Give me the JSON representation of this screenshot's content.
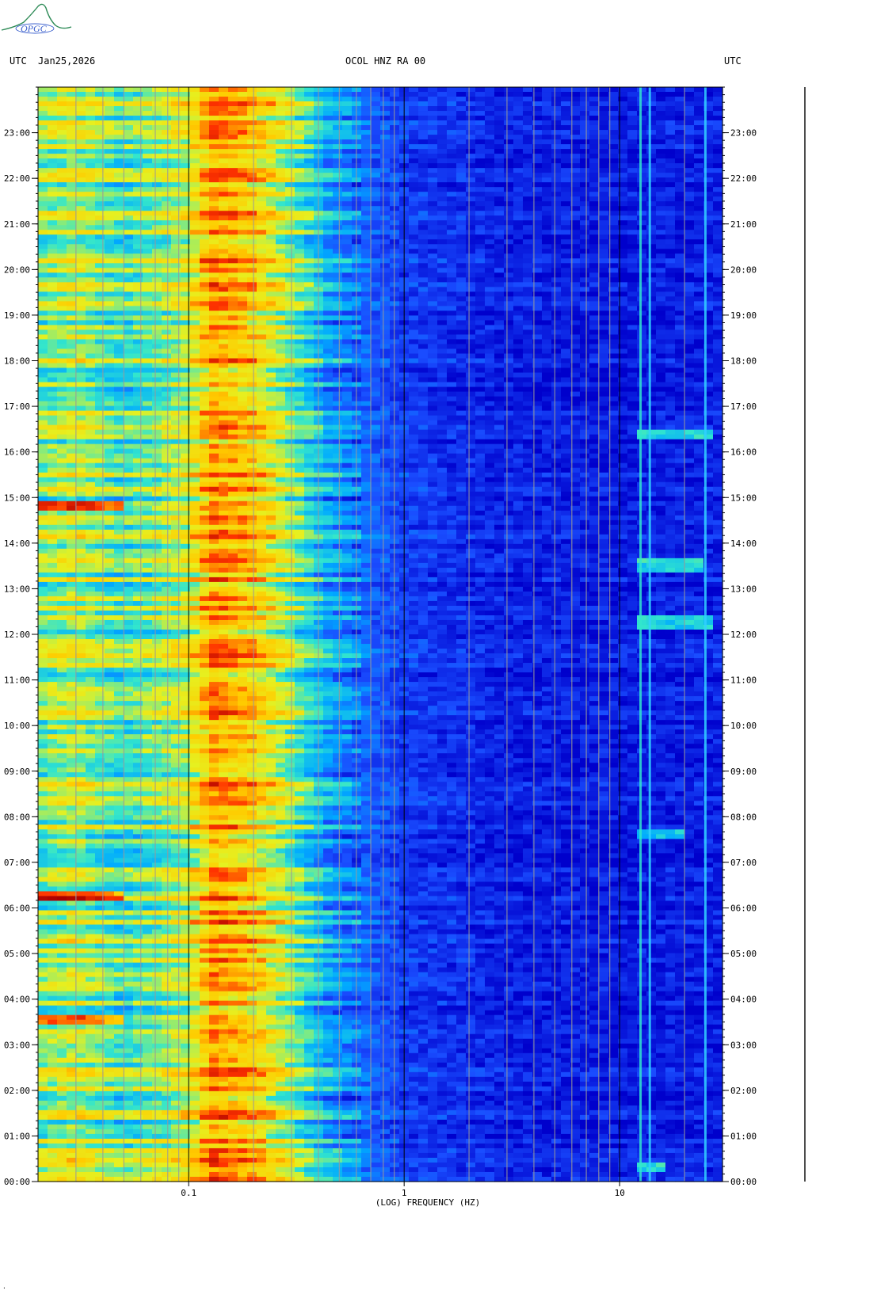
{
  "logo": {
    "text": "OPGC"
  },
  "header": {
    "left_utc": "UTC",
    "date": "Jan25,2026",
    "station": "OCOL HNZ RA 00",
    "right_utc": "UTC"
  },
  "chart_data": {
    "type": "heatmap",
    "title": "OCOL HNZ RA 00",
    "xlabel": "(LOG) FREQUENCY (HZ)",
    "ylabel": "UTC",
    "x_scale": "log",
    "x_ticks": [
      0.1,
      1,
      10
    ],
    "x_tick_labels": [
      "0.1",
      "1",
      "10"
    ],
    "xlim": [
      0.02,
      30
    ],
    "y_ticks": [
      "00:00",
      "01:00",
      "02:00",
      "03:00",
      "04:00",
      "05:00",
      "06:00",
      "07:00",
      "08:00",
      "09:00",
      "10:00",
      "11:00",
      "12:00",
      "13:00",
      "14:00",
      "15:00",
      "16:00",
      "17:00",
      "18:00",
      "19:00",
      "20:00",
      "21:00",
      "22:00",
      "23:00"
    ],
    "ylim_hours": [
      0,
      24
    ],
    "colormap": [
      "#0000cc",
      "#1a4dff",
      "#00aaff",
      "#33e6cc",
      "#e6f020",
      "#ffcc00",
      "#ff3300",
      "#aa0000"
    ],
    "power_profile": [
      {
        "f": 0.02,
        "level": 0.48
      },
      {
        "f": 0.03,
        "level": 0.55
      },
      {
        "f": 0.05,
        "level": 0.42
      },
      {
        "f": 0.1,
        "level": 0.56
      },
      {
        "f": 0.13,
        "level": 0.76
      },
      {
        "f": 0.2,
        "level": 0.68
      },
      {
        "f": 0.3,
        "level": 0.5
      },
      {
        "f": 0.45,
        "level": 0.28
      },
      {
        "f": 0.7,
        "level": 0.17
      },
      {
        "f": 1.0,
        "level": 0.11
      },
      {
        "f": 3.0,
        "level": 0.06
      },
      {
        "f": 10,
        "level": 0.05
      },
      {
        "f": 30,
        "level": 0.06
      }
    ],
    "narrowband_lines_hz": [
      12.5,
      13.8,
      25.0
    ],
    "bursts": [
      {
        "time": "16:25",
        "f_from": 12.5,
        "f_to": 28
      },
      {
        "time": "13:30",
        "f_from": 12.5,
        "f_to": 25
      },
      {
        "time": "12:15",
        "f_from": 12.5,
        "f_to": 28
      },
      {
        "time": "07:35",
        "f_from": 12.5,
        "f_to": 20
      },
      {
        "time": "00:20",
        "f_from": 12.5,
        "f_to": 16
      },
      {
        "time": "06:15",
        "f_from": 0.02,
        "f_to": 0.05
      },
      {
        "time": "03:35",
        "f_from": 0.02,
        "f_to": 0.05
      },
      {
        "time": "14:50",
        "f_from": 0.02,
        "f_to": 0.05
      }
    ],
    "grid": true
  }
}
